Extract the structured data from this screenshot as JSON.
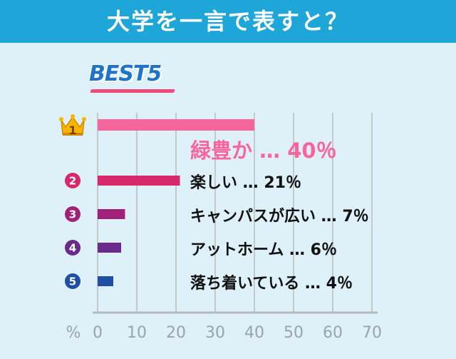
{
  "header": {
    "title": "大学を一言で表すと？",
    "badge": "BEST5",
    "accent_color": "#1fa6d9"
  },
  "chart_data": {
    "type": "bar",
    "orientation": "horizontal",
    "unit_label": "%",
    "categories": [
      "緑豊か",
      "楽しい",
      "キャンパスが広い",
      "アットホーム",
      "落ち着いている"
    ],
    "values": [
      40,
      21,
      7,
      6,
      4
    ],
    "value_labels": [
      "40％",
      "21％",
      "7％",
      "6％",
      "4％"
    ],
    "separator": "…",
    "ranks": [
      "1",
      "2",
      "3",
      "4",
      "5"
    ],
    "rank_icons": [
      "crown-icon",
      "circle-2-icon",
      "circle-3-icon",
      "circle-4-icon",
      "circle-5-icon"
    ],
    "colors": [
      "#f7659d",
      "#d6286b",
      "#a0207a",
      "#6a2a8c",
      "#1e4fa3"
    ],
    "rank_colors": [
      "#f4b400",
      "#d6286b",
      "#a0207a",
      "#6a2a8c",
      "#1e4fa3"
    ],
    "xlim": [
      0,
      70
    ],
    "xticks": [
      0,
      10,
      20,
      30,
      40,
      50,
      60,
      70
    ],
    "grid": true
  }
}
